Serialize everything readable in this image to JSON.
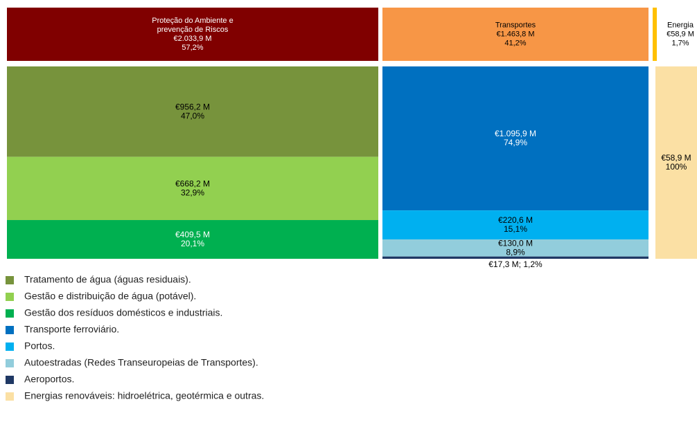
{
  "chart_data": {
    "type": "treemap",
    "groups": [
      {
        "name": [
          "Proteção do Ambiente e",
          "prevenção de Riscos"
        ],
        "value": 2033.9,
        "value_label": "€2.033,9 M",
        "share": 57.2,
        "share_label": "57,2%",
        "color": "#800000",
        "children": [
          {
            "name": "Tratamento de água (águas residuais).",
            "value": 956.2,
            "value_label": "€956,2 M",
            "share": 47.0,
            "share_label": "47,0%",
            "color": "#77933c"
          },
          {
            "name": "Gestão e distribuição de água (potável).",
            "value": 668.2,
            "value_label": "€668,2 M",
            "share": 32.9,
            "share_label": "32,9%",
            "color": "#92d050"
          },
          {
            "name": "Gestão dos resíduos domésticos e industriais.",
            "value": 409.5,
            "value_label": "€409,5 M",
            "share": 20.1,
            "share_label": "20,1%",
            "color": "#00b050"
          }
        ]
      },
      {
        "name": [
          "Transportes"
        ],
        "value": 1463.8,
        "value_label": "€1.463,8 M",
        "share": 41.2,
        "share_label": "41,2%",
        "color": "#f79646",
        "children": [
          {
            "name": "Transporte ferroviário.",
            "value": 1095.9,
            "value_label": "€1.095,9 M",
            "share": 74.9,
            "share_label": "74,9%",
            "color": "#0070c0"
          },
          {
            "name": "Portos.",
            "value": 220.6,
            "value_label": "€220,6 M",
            "share": 15.1,
            "share_label": "15,1%",
            "color": "#00b0f0"
          },
          {
            "name": "Autoestradas (Redes Transeuropeias de Transportes).",
            "value": 130.0,
            "value_label": "€130,0 M",
            "share": 8.9,
            "share_label": "8,9%",
            "color": "#92cddc"
          },
          {
            "name": "Aeroportos.",
            "value": 17.3,
            "share": 1.2,
            "label": "€17,3 M; 1,2%",
            "color": "#1f3864"
          }
        ]
      },
      {
        "name": [
          "Energia"
        ],
        "value": 58.9,
        "value_label": "€58,9 M",
        "share": 1.7,
        "share_label": "1,7%",
        "color": "#ffc000",
        "children": [
          {
            "name": "Energias renováveis: hidroelétrica, geotérmica e outras.",
            "value": 58.9,
            "value_label": "€58,9 M",
            "share": 100,
            "share_label": "100%",
            "color": "#fbe0a4"
          }
        ]
      }
    ]
  }
}
